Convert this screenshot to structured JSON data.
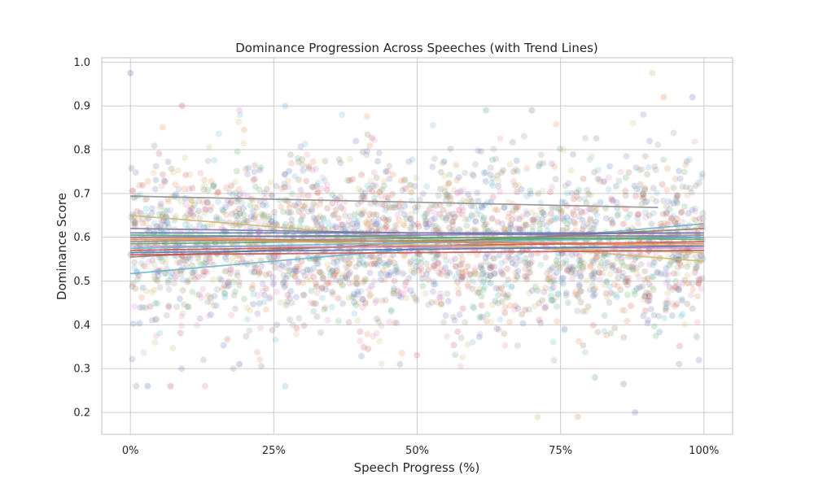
{
  "chart_data": {
    "type": "scatter",
    "title": "Dominance Progression Across Speeches (with Trend Lines)",
    "xlabel": "Speech Progress (%)",
    "ylabel": "Dominance Score",
    "xlim": [
      -5,
      105
    ],
    "ylim": [
      0.15,
      1.01
    ],
    "x_ticks": [
      0,
      25,
      50,
      75,
      100
    ],
    "x_tick_labels": [
      "0%",
      "25%",
      "50%",
      "75%",
      "100%"
    ],
    "y_ticks": [
      0.2,
      0.3,
      0.4,
      0.5,
      0.6,
      0.7,
      0.8,
      0.9,
      1.0
    ],
    "y_tick_labels": [
      "0.2",
      "0.3",
      "0.4",
      "0.5",
      "0.6",
      "0.7",
      "0.8",
      "0.9",
      "1.0"
    ],
    "grid": true,
    "legend": "none",
    "point_opacity": 0.22,
    "palette": [
      "#4c72b0",
      "#dd8452",
      "#55a868",
      "#c44e52",
      "#8172b3",
      "#937860",
      "#da8bc3",
      "#8c8c8c",
      "#ccb974",
      "#64b5cd"
    ],
    "highlight_points": [
      {
        "x": 0,
        "y": 0.975
      },
      {
        "x": 9,
        "y": 0.9
      },
      {
        "x": 19,
        "y": 0.89
      },
      {
        "x": 27,
        "y": 0.9
      },
      {
        "x": 62,
        "y": 0.89
      },
      {
        "x": 70,
        "y": 0.89
      },
      {
        "x": 91,
        "y": 0.975
      },
      {
        "x": 93,
        "y": 0.92
      },
      {
        "x": 98,
        "y": 0.92
      },
      {
        "x": 1,
        "y": 0.26
      },
      {
        "x": 3,
        "y": 0.26
      },
      {
        "x": 7,
        "y": 0.26
      },
      {
        "x": 13,
        "y": 0.26
      },
      {
        "x": 27,
        "y": 0.26
      },
      {
        "x": 81,
        "y": 0.28
      },
      {
        "x": 86,
        "y": 0.265
      },
      {
        "x": 71,
        "y": 0.19
      },
      {
        "x": 78,
        "y": 0.19
      },
      {
        "x": 88,
        "y": 0.2
      },
      {
        "x": 47,
        "y": 0.31
      },
      {
        "x": 19,
        "y": 0.31
      }
    ],
    "trend_lines": [
      {
        "x": [
          0,
          92
        ],
        "y": [
          0.694,
          0.668
        ]
      },
      {
        "x": [
          0,
          100
        ],
        "y": [
          0.65,
          0.545
        ]
      },
      {
        "x": [
          0,
          100
        ],
        "y": [
          0.517,
          0.631
        ]
      },
      {
        "x": [
          0,
          100
        ],
        "y": [
          0.61,
          0.61
        ]
      },
      {
        "x": [
          0,
          100
        ],
        "y": [
          0.6,
          0.58
        ]
      },
      {
        "x": [
          0,
          100
        ],
        "y": [
          0.585,
          0.6
        ]
      },
      {
        "x": [
          0,
          100
        ],
        "y": [
          0.57,
          0.59
        ]
      },
      {
        "x": [
          0,
          100
        ],
        "y": [
          0.62,
          0.6
        ]
      },
      {
        "x": [
          0,
          100
        ],
        "y": [
          0.555,
          0.62
        ]
      },
      {
        "x": [
          0,
          100
        ],
        "y": [
          0.58,
          0.575
        ]
      },
      {
        "x": [
          0,
          100
        ],
        "y": [
          0.59,
          0.605
        ]
      },
      {
        "x": [
          0,
          100
        ],
        "y": [
          0.6,
          0.565
        ]
      },
      {
        "x": [
          0,
          100
        ],
        "y": [
          0.575,
          0.6
        ]
      },
      {
        "x": [
          0,
          100
        ],
        "y": [
          0.565,
          0.58
        ]
      },
      {
        "x": [
          0,
          100
        ],
        "y": [
          0.595,
          0.585
        ]
      },
      {
        "x": [
          0,
          100
        ],
        "y": [
          0.605,
          0.595
        ]
      },
      {
        "x": [
          0,
          100
        ],
        "y": [
          0.56,
          0.57
        ]
      },
      {
        "x": [
          0,
          100
        ],
        "y": [
          0.6,
          0.61
        ]
      }
    ]
  }
}
